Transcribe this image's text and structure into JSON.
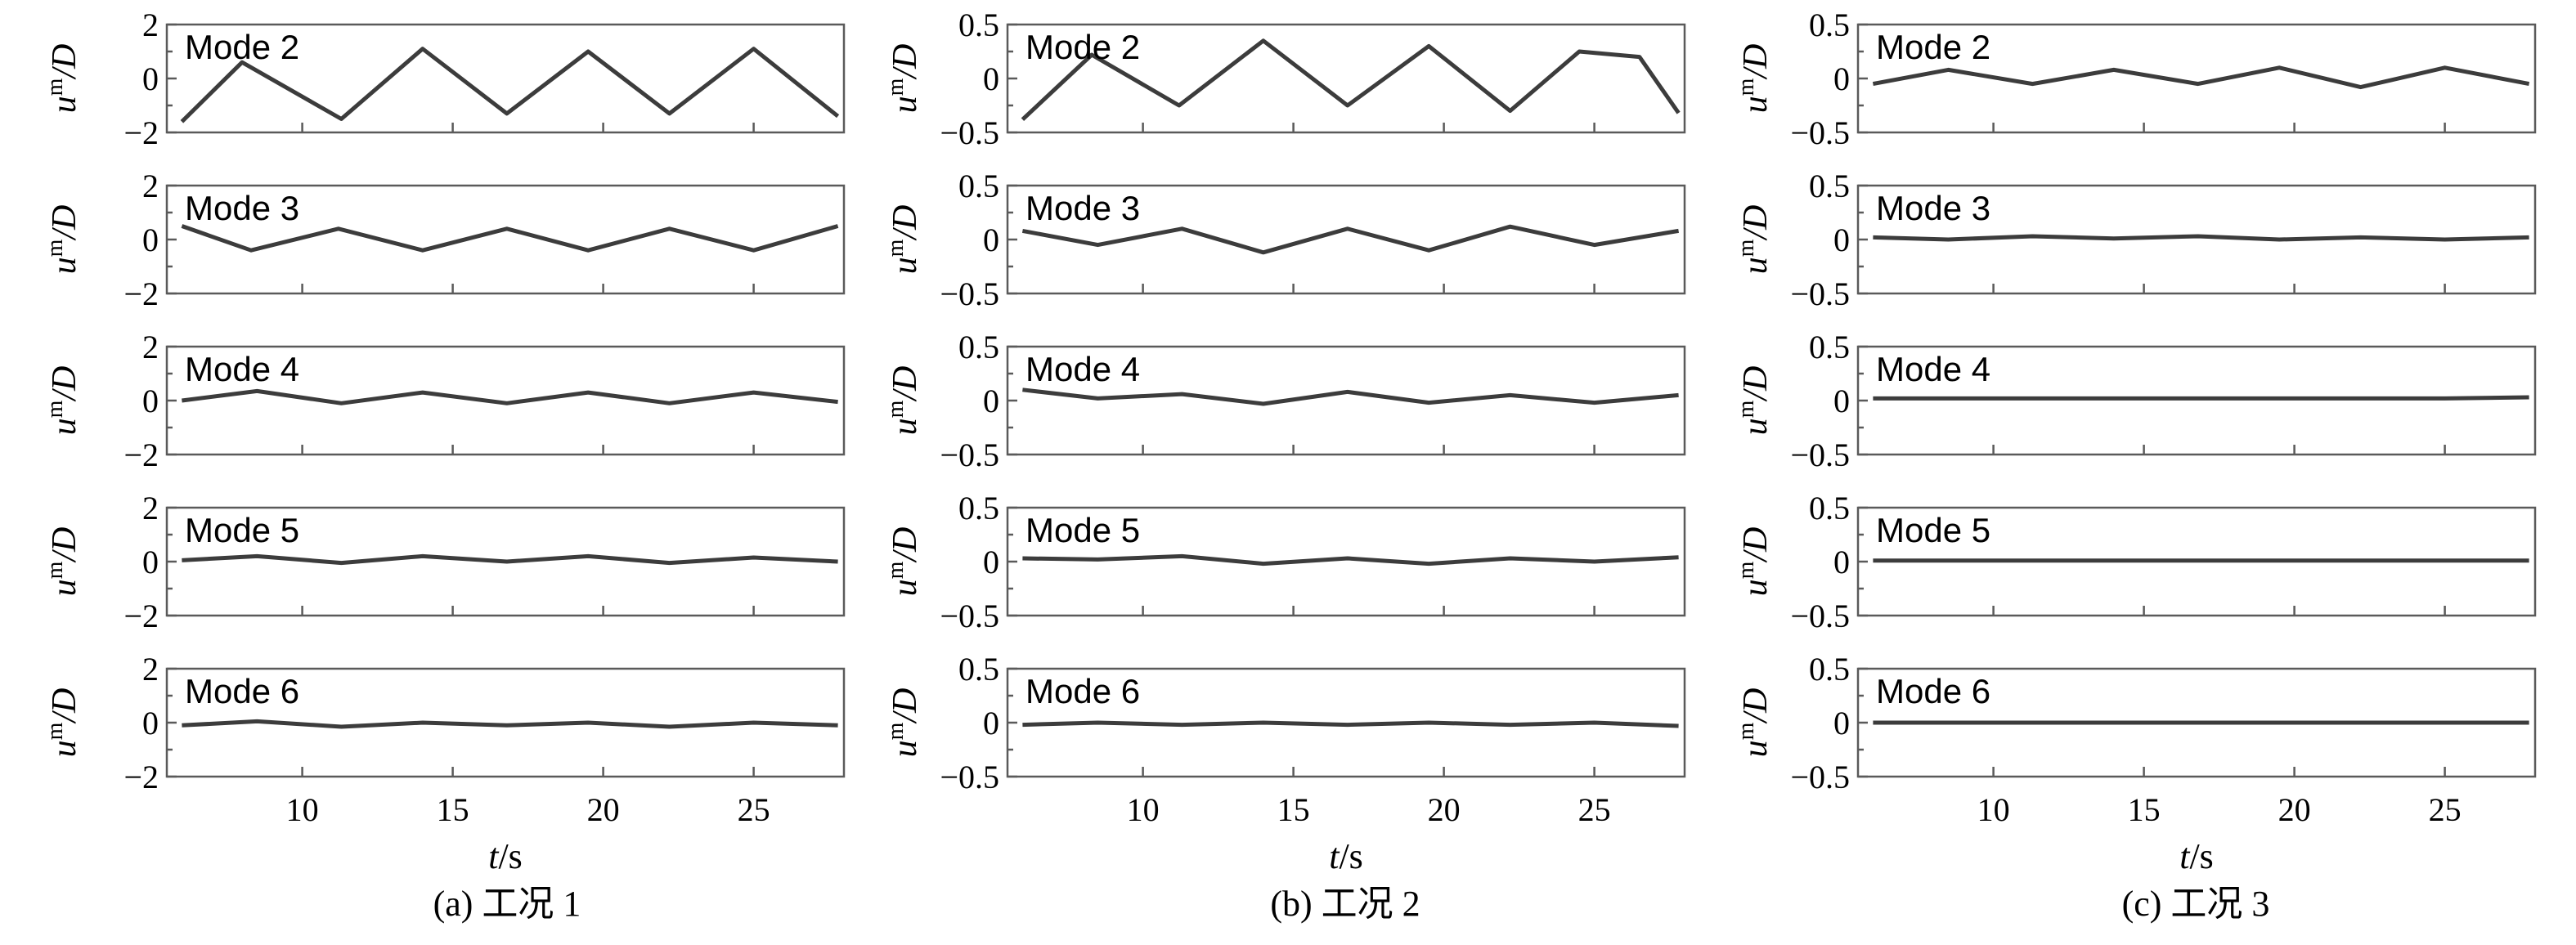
{
  "chart_data": [
    {
      "type": "line",
      "caption": "(a) 工况 1",
      "xlabel_main": "t",
      "xlabel_unit": "/s",
      "ylabel_main": "u",
      "ylabel_sup": "m",
      "ylabel_tail": "/D",
      "xlim": [
        5.5,
        28
      ],
      "x_ticks": [
        10,
        15,
        20,
        25
      ],
      "ylim": [
        -2,
        2
      ],
      "y_ticks": [
        "2",
        "0",
        "−2"
      ],
      "modes": [
        {
          "name": "Mode 2",
          "x": [
            6,
            8,
            11.3,
            14,
            16.8,
            19.5,
            22.2,
            25,
            27.8
          ],
          "y": [
            -1.6,
            0.6,
            -1.5,
            1.1,
            -1.3,
            1.0,
            -1.3,
            1.1,
            -1.4
          ]
        },
        {
          "name": "Mode 3",
          "x": [
            6,
            8.3,
            11.2,
            14,
            16.8,
            19.5,
            22.2,
            25,
            27.8
          ],
          "y": [
            0.5,
            -0.4,
            0.4,
            -0.4,
            0.4,
            -0.4,
            0.4,
            -0.4,
            0.5
          ]
        },
        {
          "name": "Mode 4",
          "x": [
            6,
            8.5,
            11.3,
            14,
            16.8,
            19.5,
            22.2,
            25,
            27.8
          ],
          "y": [
            0.0,
            0.35,
            -0.1,
            0.3,
            -0.1,
            0.3,
            -0.1,
            0.3,
            -0.05
          ]
        },
        {
          "name": "Mode 5",
          "x": [
            6,
            8.5,
            11.3,
            14,
            16.8,
            19.5,
            22.2,
            25,
            27.8
          ],
          "y": [
            0.05,
            0.2,
            -0.05,
            0.2,
            0.0,
            0.2,
            -0.05,
            0.15,
            0.0
          ]
        },
        {
          "name": "Mode 6",
          "x": [
            6,
            8.5,
            11.3,
            14,
            16.8,
            19.5,
            22.2,
            25,
            27.8
          ],
          "y": [
            -0.1,
            0.05,
            -0.15,
            0.0,
            -0.1,
            0.0,
            -0.15,
            0.0,
            -0.1
          ]
        }
      ]
    },
    {
      "type": "line",
      "caption": "(b) 工况 2",
      "xlabel_main": "t",
      "xlabel_unit": "/s",
      "ylabel_main": "u",
      "ylabel_sup": "m",
      "ylabel_tail": "/D",
      "xlim": [
        5.5,
        28
      ],
      "x_ticks": [
        10,
        15,
        20,
        25
      ],
      "ylim": [
        -0.5,
        0.5
      ],
      "y_ticks": [
        "0.5",
        "0",
        "−0.5"
      ],
      "modes": [
        {
          "name": "Mode 2",
          "x": [
            6,
            8.3,
            11.2,
            14,
            16.8,
            19.5,
            22.2,
            24.5,
            26.5,
            27.8
          ],
          "y": [
            -0.38,
            0.22,
            -0.25,
            0.35,
            -0.25,
            0.3,
            -0.3,
            0.25,
            0.2,
            -0.32
          ]
        },
        {
          "name": "Mode 3",
          "x": [
            6,
            8.5,
            11.3,
            14,
            16.8,
            19.5,
            22.2,
            25,
            27.8
          ],
          "y": [
            0.08,
            -0.05,
            0.1,
            -0.12,
            0.1,
            -0.1,
            0.12,
            -0.05,
            0.08
          ]
        },
        {
          "name": "Mode 4",
          "x": [
            6,
            8.5,
            11.3,
            14,
            16.8,
            19.5,
            22.2,
            25,
            27.8
          ],
          "y": [
            0.1,
            0.02,
            0.06,
            -0.03,
            0.08,
            -0.02,
            0.05,
            -0.02,
            0.05
          ]
        },
        {
          "name": "Mode 5",
          "x": [
            6,
            8.5,
            11.3,
            14,
            16.8,
            19.5,
            22.2,
            25,
            27.8
          ],
          "y": [
            0.03,
            0.02,
            0.05,
            -0.02,
            0.03,
            -0.02,
            0.03,
            0.0,
            0.04
          ]
        },
        {
          "name": "Mode 6",
          "x": [
            6,
            8.5,
            11.3,
            14,
            16.8,
            19.5,
            22.2,
            25,
            27.8
          ],
          "y": [
            -0.02,
            0.0,
            -0.02,
            0.0,
            -0.02,
            0.0,
            -0.02,
            0.0,
            -0.03
          ]
        }
      ]
    },
    {
      "type": "line",
      "caption": "(c) 工况 3",
      "xlabel_main": "t",
      "xlabel_unit": "/s",
      "ylabel_main": "u",
      "ylabel_sup": "m",
      "ylabel_tail": "/D",
      "xlim": [
        5.5,
        28
      ],
      "x_ticks": [
        10,
        15,
        20,
        25
      ],
      "ylim": [
        -0.5,
        0.5
      ],
      "y_ticks": [
        "0.5",
        "0",
        "−0.5"
      ],
      "modes": [
        {
          "name": "Mode 2",
          "x": [
            6,
            8.5,
            11.3,
            14,
            16.8,
            19.5,
            22.2,
            25,
            27.8
          ],
          "y": [
            -0.05,
            0.08,
            -0.05,
            0.08,
            -0.05,
            0.1,
            -0.08,
            0.1,
            -0.05
          ]
        },
        {
          "name": "Mode 3",
          "x": [
            6,
            8.5,
            11.3,
            14,
            16.8,
            19.5,
            22.2,
            25,
            27.8
          ],
          "y": [
            0.02,
            0.0,
            0.03,
            0.01,
            0.03,
            0.0,
            0.02,
            0.0,
            0.02
          ]
        },
        {
          "name": "Mode 4",
          "x": [
            6,
            8.5,
            11.3,
            14,
            16.8,
            19.5,
            22.2,
            25,
            27.8
          ],
          "y": [
            0.02,
            0.02,
            0.02,
            0.02,
            0.02,
            0.02,
            0.02,
            0.02,
            0.03
          ]
        },
        {
          "name": "Mode 5",
          "x": [
            6,
            27.8
          ],
          "y": [
            0.01,
            0.01
          ]
        },
        {
          "name": "Mode 6",
          "x": [
            6,
            27.8
          ],
          "y": [
            0.0,
            0.0
          ]
        }
      ]
    }
  ]
}
